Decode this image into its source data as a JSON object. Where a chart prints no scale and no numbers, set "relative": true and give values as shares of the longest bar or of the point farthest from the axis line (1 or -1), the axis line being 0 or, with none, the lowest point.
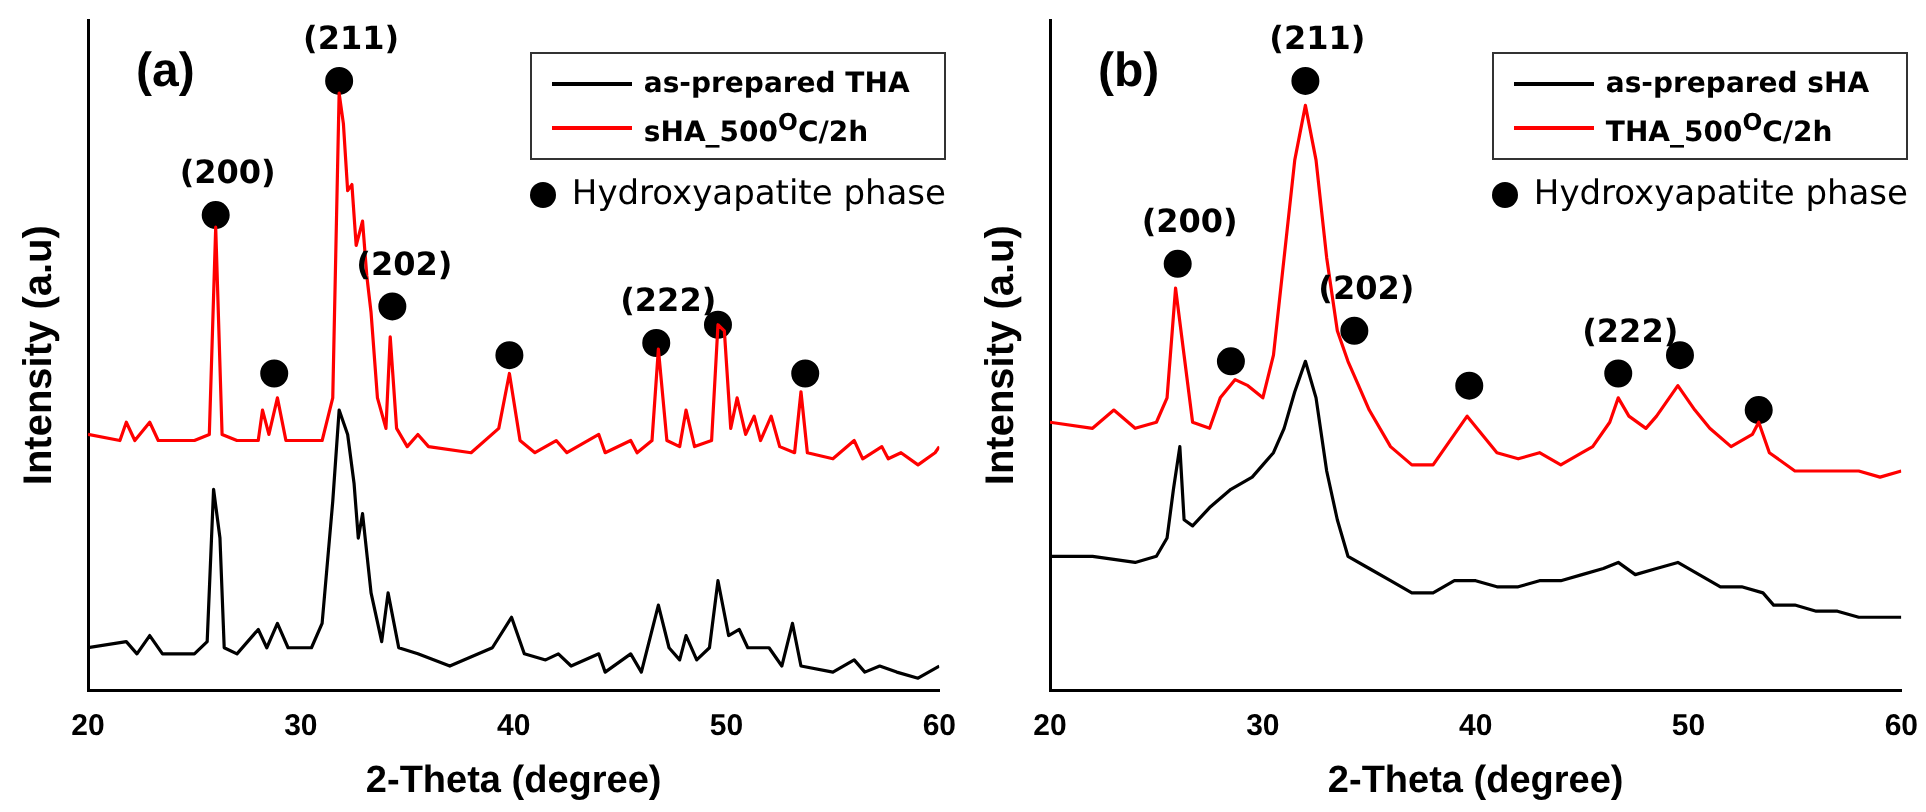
{
  "chart_data": [
    {
      "type": "line",
      "title": "(a)",
      "xlabel": "2-Theta (degree)",
      "ylabel": "Intensity (a.u)",
      "relative": true,
      "xlim": [
        20,
        60
      ],
      "xticks": [
        20,
        30,
        40,
        50,
        60
      ],
      "legend": "top right",
      "series": [
        {
          "name": "as-prepared THA",
          "color": "#000000",
          "x": [
            20,
            21.8,
            22.3,
            22.9,
            23.5,
            25,
            25.6,
            25.9,
            26.2,
            26.4,
            27,
            28,
            28.4,
            28.9,
            29.4,
            30.5,
            31,
            31.5,
            31.8,
            32.2,
            32.5,
            32.7,
            32.9,
            33.3,
            33.8,
            34.1,
            34.6,
            35.5,
            37,
            39,
            39.9,
            40.5,
            41.5,
            42.1,
            42.7,
            44,
            44.3,
            45.5,
            46,
            46.8,
            47.3,
            47.8,
            48.1,
            48.6,
            49.2,
            49.6,
            50.1,
            50.6,
            51,
            52,
            52.6,
            53.1,
            53.5,
            55,
            56,
            56.5,
            57.2,
            58,
            59,
            60
          ],
          "values": [
            0.07,
            0.08,
            0.06,
            0.09,
            0.06,
            0.06,
            0.08,
            0.33,
            0.25,
            0.07,
            0.06,
            0.1,
            0.07,
            0.11,
            0.07,
            0.07,
            0.11,
            0.31,
            0.46,
            0.42,
            0.34,
            0.25,
            0.29,
            0.16,
            0.08,
            0.16,
            0.07,
            0.06,
            0.04,
            0.07,
            0.12,
            0.06,
            0.05,
            0.06,
            0.04,
            0.06,
            0.03,
            0.06,
            0.03,
            0.14,
            0.07,
            0.05,
            0.09,
            0.05,
            0.07,
            0.18,
            0.09,
            0.1,
            0.07,
            0.07,
            0.04,
            0.11,
            0.04,
            0.03,
            0.05,
            0.03,
            0.04,
            0.03,
            0.02,
            0.04
          ]
        },
        {
          "name": "sHA_500$^{O}$C/2h",
          "color": "#ff0000",
          "x": [
            20,
            21.5,
            21.8,
            22.2,
            22.9,
            23.3,
            25,
            25.7,
            26,
            26.3,
            27,
            28,
            28.2,
            28.5,
            28.9,
            29.3,
            31,
            31.5,
            31.8,
            32,
            32.2,
            32.4,
            32.6,
            32.9,
            33.1,
            33.3,
            33.6,
            34,
            34.2,
            34.5,
            35,
            35.5,
            36,
            38,
            39.3,
            39.8,
            40.3,
            41,
            42,
            42.5,
            44,
            44.3,
            45.5,
            45.8,
            46.5,
            46.8,
            47.2,
            47.8,
            48.1,
            48.5,
            49.3,
            49.6,
            49.9,
            50.2,
            50.5,
            50.9,
            51.3,
            51.6,
            52.1,
            52.5,
            53.2,
            53.5,
            53.8,
            55,
            56,
            56.4,
            57.3,
            57.6,
            58.2,
            59,
            59.8,
            60
          ],
          "values": [
            0.42,
            0.41,
            0.44,
            0.41,
            0.44,
            0.41,
            0.41,
            0.42,
            0.76,
            0.42,
            0.41,
            0.41,
            0.46,
            0.42,
            0.48,
            0.41,
            0.41,
            0.48,
            0.98,
            0.93,
            0.82,
            0.83,
            0.73,
            0.77,
            0.68,
            0.62,
            0.48,
            0.43,
            0.58,
            0.43,
            0.4,
            0.42,
            0.4,
            0.39,
            0.43,
            0.52,
            0.41,
            0.39,
            0.41,
            0.39,
            0.42,
            0.39,
            0.41,
            0.39,
            0.41,
            0.56,
            0.41,
            0.4,
            0.46,
            0.4,
            0.41,
            0.6,
            0.59,
            0.43,
            0.48,
            0.42,
            0.45,
            0.41,
            0.45,
            0.4,
            0.39,
            0.49,
            0.39,
            0.38,
            0.41,
            0.38,
            0.4,
            0.38,
            0.39,
            0.37,
            0.39,
            0.4
          ]
        },
        {
          "name": "Hydroxyapatite phase",
          "type": "scatter",
          "marker": "circle",
          "color": "#000000",
          "x": [
            26,
            28.75,
            31.8,
            34.3,
            39.8,
            46.7,
            49.6,
            53.7
          ],
          "values": [
            0.78,
            0.52,
            1,
            0.63,
            0.55,
            0.57,
            0.6,
            0.52
          ]
        }
      ],
      "annotations": [
        {
          "text": "(200)",
          "x": 26,
          "y": 0.78
        },
        {
          "text": "(211)",
          "x": 31.8,
          "y": 1
        },
        {
          "text": "(202)",
          "x": 34.3,
          "y": 0.63
        },
        {
          "text": "(222)",
          "x": 46.7,
          "y": 0.57
        }
      ]
    },
    {
      "type": "line",
      "title": "(b)",
      "xlabel": "2-Theta (degree)",
      "ylabel": "Intensity (a.u)",
      "relative": true,
      "xlim": [
        20,
        60
      ],
      "xticks": [
        20,
        30,
        40,
        50,
        60
      ],
      "legend": "top right",
      "series": [
        {
          "name": "as-prepared sHA",
          "color": "#000000",
          "x": [
            20,
            22,
            24,
            25,
            25.5,
            25.8,
            26.1,
            26.3,
            26.7,
            27.5,
            28.5,
            29.5,
            30,
            30.5,
            31,
            31.5,
            32,
            32.5,
            33,
            33.5,
            34,
            35,
            36,
            37,
            38,
            39,
            40,
            41,
            42,
            43,
            44,
            45,
            46,
            46.7,
            47.5,
            48.5,
            49.5,
            50.5,
            51.5,
            52.5,
            53.5,
            54,
            55,
            56,
            57,
            58,
            59,
            60
          ],
          "values": [
            0.22,
            0.22,
            0.21,
            0.22,
            0.25,
            0.33,
            0.4,
            0.28,
            0.27,
            0.3,
            0.33,
            0.35,
            0.37,
            0.39,
            0.43,
            0.49,
            0.54,
            0.48,
            0.36,
            0.28,
            0.22,
            0.2,
            0.18,
            0.16,
            0.16,
            0.18,
            0.18,
            0.17,
            0.17,
            0.18,
            0.18,
            0.19,
            0.2,
            0.21,
            0.19,
            0.2,
            0.21,
            0.19,
            0.17,
            0.17,
            0.16,
            0.14,
            0.14,
            0.13,
            0.13,
            0.12,
            0.12,
            0.12
          ]
        },
        {
          "name": "THA_500$^{O}$C/2h",
          "color": "#ff0000",
          "x": [
            20,
            22,
            23,
            24,
            25,
            25.5,
            25.9,
            26.3,
            26.7,
            27.5,
            28,
            28.7,
            29.3,
            30,
            30.5,
            31,
            31.5,
            32,
            32.5,
            33,
            33.5,
            34,
            34.5,
            35,
            36,
            37,
            38,
            39,
            39.6,
            40.3,
            41,
            42,
            43,
            44,
            45,
            45.5,
            46.3,
            46.7,
            47.2,
            48,
            48.5,
            49.5,
            50.3,
            51,
            52,
            53,
            53.3,
            53.8,
            55,
            57,
            58,
            59,
            60
          ],
          "values": [
            0.44,
            0.43,
            0.46,
            0.43,
            0.44,
            0.48,
            0.66,
            0.55,
            0.44,
            0.43,
            0.48,
            0.51,
            0.5,
            0.48,
            0.55,
            0.71,
            0.87,
            0.96,
            0.87,
            0.71,
            0.59,
            0.54,
            0.5,
            0.46,
            0.4,
            0.37,
            0.37,
            0.42,
            0.45,
            0.42,
            0.39,
            0.38,
            0.39,
            0.37,
            0.39,
            0.4,
            0.44,
            0.48,
            0.45,
            0.43,
            0.45,
            0.5,
            0.46,
            0.43,
            0.4,
            0.42,
            0.44,
            0.39,
            0.36,
            0.36,
            0.36,
            0.35,
            0.36
          ]
        },
        {
          "name": "Hydroxyapatite phase",
          "type": "scatter",
          "marker": "circle",
          "color": "#000000",
          "x": [
            26,
            28.5,
            32,
            34.3,
            39.7,
            46.7,
            49.6,
            53.3
          ],
          "values": [
            0.7,
            0.54,
            1,
            0.59,
            0.5,
            0.52,
            0.55,
            0.46
          ]
        }
      ],
      "annotations": [
        {
          "text": "(200)",
          "x": 26,
          "y": 0.7
        },
        {
          "text": "(211)",
          "x": 32,
          "y": 1
        },
        {
          "text": "(202)",
          "x": 34.3,
          "y": 0.59
        },
        {
          "text": "(222)",
          "x": 46.7,
          "y": 0.52
        }
      ]
    }
  ]
}
